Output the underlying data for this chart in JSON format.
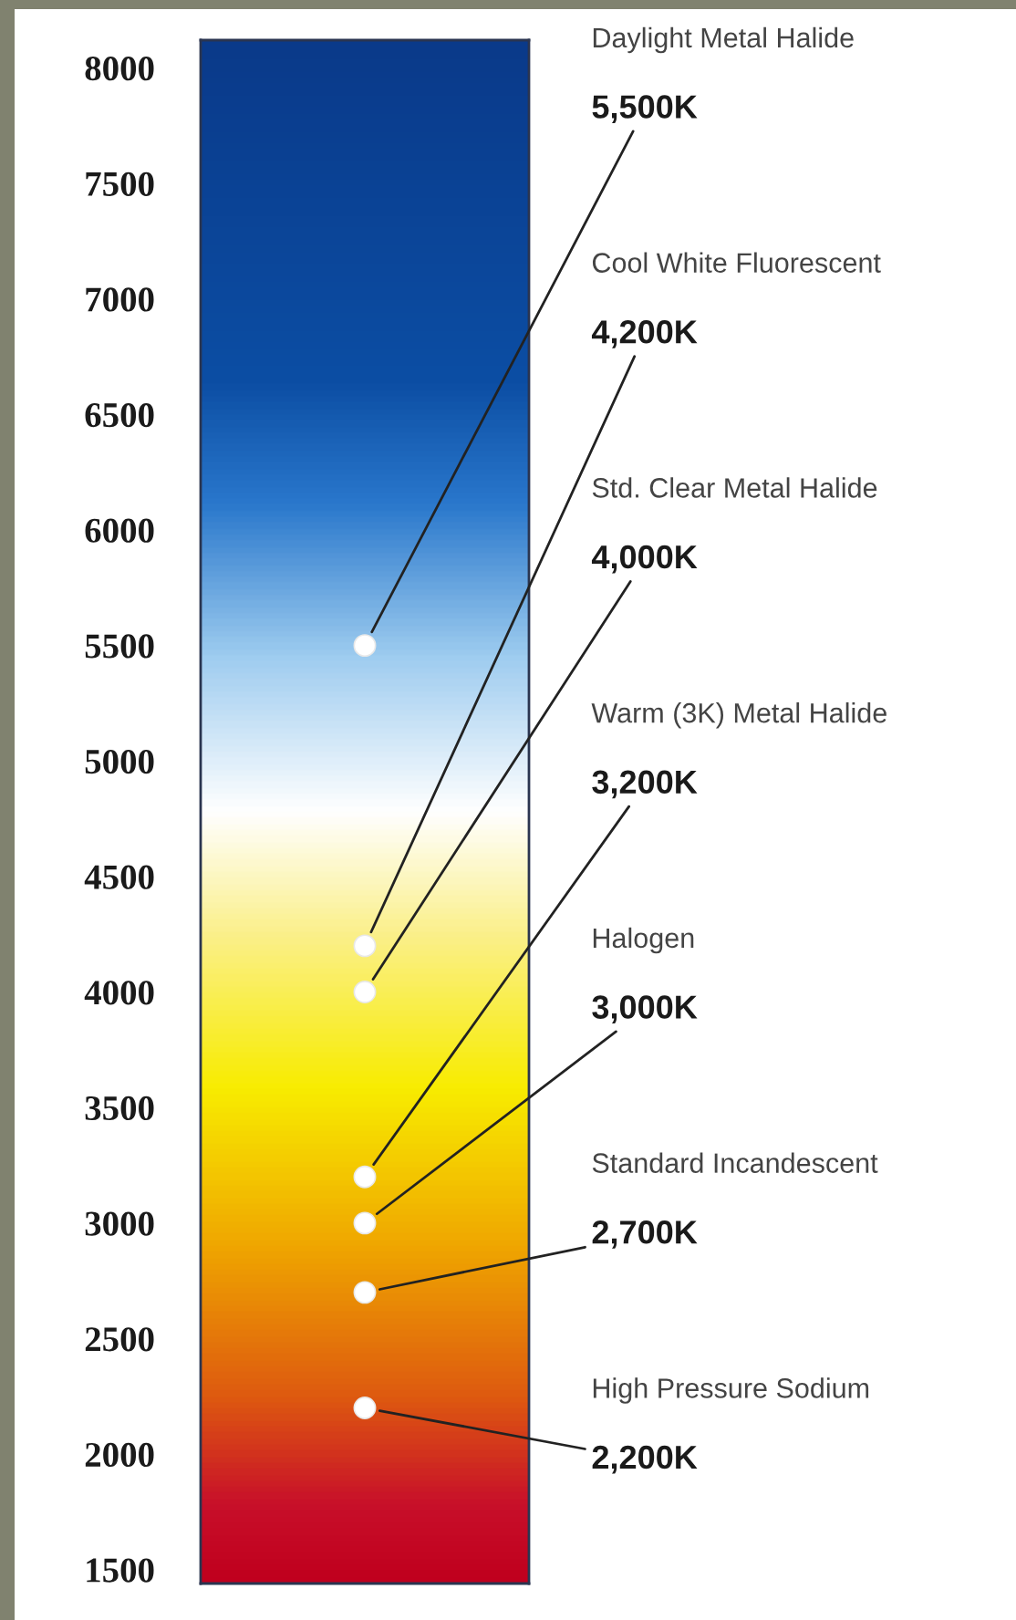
{
  "chart_data": {
    "type": "scatter",
    "categories": [
      null
    ],
    "ylim": [
      1440,
      8120
    ],
    "yticks": [
      1500,
      2000,
      2500,
      3000,
      3500,
      4000,
      4500,
      5000,
      5500,
      6000,
      6500,
      7000,
      7500,
      8000
    ],
    "marker": "circle",
    "grid": false,
    "legend": false,
    "series": [
      {
        "name": "Daylight Metal Halide",
        "color": "#ffffff",
        "values": [
          5500
        ],
        "value_labels": [
          "5,500K"
        ]
      },
      {
        "name": "Cool White Fluorescent",
        "color": "#ffffff",
        "values": [
          4200
        ],
        "value_labels": [
          "4,200K"
        ]
      },
      {
        "name": "Std. Clear Metal Halide",
        "color": "#ffffff",
        "values": [
          4000
        ],
        "value_labels": [
          "4,000K"
        ]
      },
      {
        "name": "Warm (3K) Metal Halide",
        "color": "#ffffff",
        "values": [
          3200
        ],
        "value_labels": [
          "3,200K"
        ]
      },
      {
        "name": "Halogen",
        "color": "#ffffff",
        "values": [
          3000
        ],
        "value_labels": [
          "3,000K"
        ]
      },
      {
        "name": "Standard Incandescent",
        "color": "#ffffff",
        "values": [
          2700
        ],
        "value_labels": [
          "2,700K"
        ]
      },
      {
        "name": "High Pressure Sodium",
        "color": "#ffffff",
        "values": [
          2200
        ],
        "value_labels": [
          "2,200K"
        ]
      }
    ]
  }
}
